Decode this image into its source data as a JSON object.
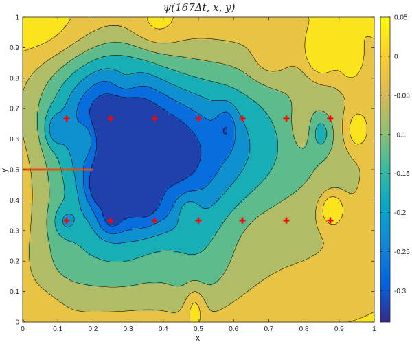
{
  "chart_data": {
    "type": "heatmap",
    "title": "ψ(167Δt, x, y)",
    "xlabel": "x",
    "ylabel": "y",
    "xlim": [
      0,
      1
    ],
    "ylim": [
      0,
      1
    ],
    "xticks": [
      "0",
      "0.1",
      "0.2",
      "0.3",
      "0.4",
      "0.5",
      "0.6",
      "0.7",
      "0.8",
      "0.9",
      "1"
    ],
    "yticks": [
      "0",
      "0.1",
      "0.2",
      "0.3",
      "0.4",
      "0.5",
      "0.6",
      "0.7",
      "0.8",
      "0.9",
      "1"
    ],
    "colorbar": {
      "range": [
        -0.34,
        0.05
      ],
      "ticks": [
        0.05,
        0,
        -0.05,
        -0.1,
        -0.15,
        -0.2,
        -0.25,
        -0.3
      ],
      "tick_labels": [
        "0.05",
        "0",
        "-0.05",
        "-0.1",
        "-0.15",
        "-0.2",
        "-0.25",
        "-0.3"
      ],
      "colormap": "parula",
      "colors": [
        "#352a87",
        "#0363e1",
        "#1485d4",
        "#06a7c6",
        "#38b99e",
        "#92bf73",
        "#d9ba56",
        "#fcce2e",
        "#f9fb0e"
      ]
    },
    "levels": [
      -0.3,
      -0.25,
      -0.2,
      -0.15,
      -0.1,
      -0.05,
      0
    ],
    "contour_line_color": "#000000",
    "markers": {
      "symbol": "plus",
      "color": "#ff0000",
      "points": [
        {
          "x": 0.125,
          "y": 0.667
        },
        {
          "x": 0.25,
          "y": 0.667
        },
        {
          "x": 0.375,
          "y": 0.667
        },
        {
          "x": 0.5,
          "y": 0.667
        },
        {
          "x": 0.625,
          "y": 0.667
        },
        {
          "x": 0.75,
          "y": 0.667
        },
        {
          "x": 0.875,
          "y": 0.667
        },
        {
          "x": 0.125,
          "y": 0.333
        },
        {
          "x": 0.25,
          "y": 0.333
        },
        {
          "x": 0.375,
          "y": 0.333
        },
        {
          "x": 0.5,
          "y": 0.333
        },
        {
          "x": 0.625,
          "y": 0.333
        },
        {
          "x": 0.75,
          "y": 0.333
        },
        {
          "x": 0.875,
          "y": 0.333
        }
      ]
    },
    "line_segment": {
      "x": [
        0,
        0.2
      ],
      "y": [
        0.5,
        0.5
      ],
      "color": "#d95319"
    },
    "field": {
      "base": 0.02,
      "bumps": [
        {
          "x": 0.27,
          "y": 0.5,
          "sx": 0.1,
          "sy": 0.23,
          "a": -0.27
        },
        {
          "x": 0.42,
          "y": 0.54,
          "sx": 0.08,
          "sy": 0.13,
          "a": -0.13
        },
        {
          "x": 0.35,
          "y": 0.35,
          "sx": 0.07,
          "sy": 0.06,
          "a": -0.07
        },
        {
          "x": 0.57,
          "y": 0.55,
          "sx": 0.12,
          "sy": 0.16,
          "a": -0.12
        },
        {
          "x": 0.5,
          "y": 0.3,
          "sx": 0.08,
          "sy": 0.2,
          "a": -0.09
        },
        {
          "x": 0.7,
          "y": 0.48,
          "sx": 0.16,
          "sy": 0.16,
          "a": -0.07
        },
        {
          "x": 0.5,
          "y": 0.75,
          "sx": 0.28,
          "sy": 0.16,
          "a": -0.11
        },
        {
          "x": 0.2,
          "y": 0.7,
          "sx": 0.14,
          "sy": 0.13,
          "a": -0.12
        },
        {
          "x": 0.9,
          "y": 0.5,
          "sx": 0.12,
          "sy": 0.25,
          "a": -0.05
        },
        {
          "x": 0.5,
          "y": 0.15,
          "sx": 0.35,
          "sy": 0.12,
          "a": -0.06
        },
        {
          "x": 0.1,
          "y": 0.3,
          "sx": 0.08,
          "sy": 0.22,
          "a": -0.08
        },
        {
          "x": 0.22,
          "y": 0.44,
          "sx": 0.03,
          "sy": 0.05,
          "a": -0.1
        },
        {
          "x": 0.12,
          "y": 0.33,
          "sx": 0.025,
          "sy": 0.035,
          "a": -0.07
        },
        {
          "x": 0.25,
          "y": 0.33,
          "sx": 0.025,
          "sy": 0.035,
          "a": -0.07
        },
        {
          "x": 0.09,
          "y": 0.63,
          "sx": 0.02,
          "sy": 0.04,
          "a": -0.08
        },
        {
          "x": 0.34,
          "y": 0.41,
          "sx": 0.03,
          "sy": 0.04,
          "a": -0.06
        },
        {
          "x": 0.58,
          "y": 0.64,
          "sx": 0.02,
          "sy": 0.05,
          "a": -0.07
        },
        {
          "x": 0.85,
          "y": 0.62,
          "sx": 0.02,
          "sy": 0.04,
          "a": -0.08
        },
        {
          "x": 0.88,
          "y": 0.37,
          "sx": 0.025,
          "sy": 0.04,
          "a": 0.12
        },
        {
          "x": 0.95,
          "y": 0.63,
          "sx": 0.025,
          "sy": 0.05,
          "a": 0.09
        },
        {
          "x": 0.85,
          "y": 0.88,
          "sx": 0.03,
          "sy": 0.05,
          "a": 0.12
        },
        {
          "x": 0.93,
          "y": 0.85,
          "sx": 0.025,
          "sy": 0.05,
          "a": 0.06
        },
        {
          "x": 0.49,
          "y": 0.05,
          "sx": 0.02,
          "sy": 0.05,
          "a": 0.08
        },
        {
          "x": 0.06,
          "y": 0.95,
          "sx": 0.08,
          "sy": 0.06,
          "a": 0.03
        },
        {
          "x": 0.38,
          "y": 0.96,
          "sx": 0.05,
          "sy": 0.05,
          "a": 0.05
        },
        {
          "x": 0.18,
          "y": 0.6,
          "sx": 0.02,
          "sy": 0.04,
          "a": 0.08
        },
        {
          "x": 0.38,
          "y": 0.55,
          "sx": 0.025,
          "sy": 0.05,
          "a": 0.06
        },
        {
          "x": 0.47,
          "y": 0.37,
          "sx": 0.025,
          "sy": 0.04,
          "a": 0.06
        },
        {
          "x": 0.26,
          "y": 0.6,
          "sx": 0.025,
          "sy": 0.05,
          "a": 0.05
        },
        {
          "x": 0.79,
          "y": 0.64,
          "sx": 0.02,
          "sy": 0.05,
          "a": 0.05
        },
        {
          "x": 0.29,
          "y": 0.78,
          "sx": 0.03,
          "sy": 0.04,
          "a": 0.05
        },
        {
          "x": 0.06,
          "y": 0.05,
          "sx": 0.05,
          "sy": 0.05,
          "a": 0.02
        },
        {
          "x": 0.7,
          "y": 0.85,
          "sx": 0.04,
          "sy": 0.05,
          "a": 0.04
        }
      ]
    }
  }
}
